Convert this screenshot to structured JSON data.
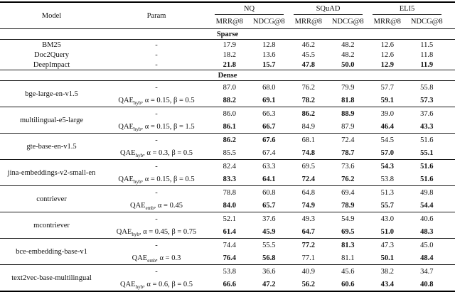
{
  "table": {
    "header": {
      "model": "Model",
      "param": "Param",
      "groups": [
        "NQ",
        "SQuAD",
        "ELI5"
      ],
      "metrics": [
        "MRR@8",
        "NDCG@8",
        "MRR@8",
        "NDCG@8",
        "MRR@8",
        "NDCG@8"
      ]
    },
    "sections": [
      {
        "label": "Sparse",
        "rows": [
          {
            "model": "BM25",
            "param": "-",
            "values": [
              "17.9",
              "12.8",
              "46.2",
              "48.2",
              "12.6",
              "11.5"
            ]
          },
          {
            "model": "Doc2Query",
            "param": "-",
            "values": [
              "18.2",
              "13.6",
              "45.5",
              "48.2",
              "12.6",
              "11.8"
            ]
          },
          {
            "model": "DeepImpact",
            "param": "-",
            "values": [
              "21.8",
              "15.7",
              "47.8",
              "50.0",
              "12.9",
              "11.9"
            ]
          }
        ]
      },
      {
        "label": "Dense",
        "groups": [
          {
            "model": "bge-large-en-v1.5",
            "rows": [
              {
                "param": "-",
                "values": [
                  "87.0",
                  "68.0",
                  "76.2",
                  "79.9",
                  "57.7",
                  "55.8"
                ]
              },
              {
                "param_base": "QAE",
                "param_sub": "hyb",
                "param_rest": ", α = 0.15,  β = 0.5",
                "values": [
                  "88.2",
                  "69.1",
                  "78.2",
                  "81.8",
                  "59.1",
                  "57.3"
                ]
              }
            ]
          },
          {
            "model": "multilingual-e5-large",
            "rows": [
              {
                "param": "-",
                "values": [
                  "86.0",
                  "66.3",
                  "86.2",
                  "88.9",
                  "39.0",
                  "37.6"
                ]
              },
              {
                "param_base": "QAE",
                "param_sub": "hyb",
                "param_rest": ", α = 0.15,  β = 1.5",
                "values": [
                  "86.1",
                  "66.7",
                  "84.9",
                  "87.9",
                  "46.4",
                  "43.3"
                ]
              }
            ]
          },
          {
            "model": "gte-base-en-v1.5",
            "rows": [
              {
                "param": "-",
                "values": [
                  "86.2",
                  "67.6",
                  "68.1",
                  "72.4",
                  "54.5",
                  "51.6"
                ]
              },
              {
                "param_base": "QAE",
                "param_sub": "hyb",
                "param_rest": ", α = 0.3,  β = 0.5",
                "values": [
                  "85.5",
                  "67.4",
                  "74.8",
                  "78.7",
                  "57.0",
                  "55.1"
                ]
              }
            ]
          },
          {
            "model": "jina-embeddings-v2-small-en",
            "rows": [
              {
                "param": "-",
                "values": [
                  "82.4",
                  "63.3",
                  "69.5",
                  "73.6",
                  "54.3",
                  "51.6"
                ]
              },
              {
                "param_base": "QAE",
                "param_sub": "hyb",
                "param_rest": ", α = 0.15,  β = 0.5",
                "values": [
                  "83.3",
                  "64.1",
                  "72.4",
                  "76.2",
                  "53.8",
                  "51.6"
                ]
              }
            ]
          },
          {
            "model": "contriever",
            "rows": [
              {
                "param": "-",
                "values": [
                  "78.8",
                  "60.8",
                  "64.8",
                  "69.4",
                  "51.3",
                  "49.8"
                ]
              },
              {
                "param_base": "QAE",
                "param_sub": "emb",
                "param_rest": ", α = 0.45",
                "values": [
                  "84.0",
                  "65.7",
                  "74.9",
                  "78.9",
                  "55.7",
                  "54.4"
                ]
              }
            ]
          },
          {
            "model": "mcontriever",
            "rows": [
              {
                "param": "-",
                "values": [
                  "52.1",
                  "37.6",
                  "49.3",
                  "54.9",
                  "43.0",
                  "40.6"
                ]
              },
              {
                "param_base": "QAE",
                "param_sub": "hyb",
                "param_rest": ", α = 0.45,  β = 0.75",
                "values": [
                  "61.4",
                  "45.9",
                  "64.7",
                  "69.5",
                  "51.0",
                  "48.3"
                ]
              }
            ]
          },
          {
            "model": "bce-embedding-base-v1",
            "rows": [
              {
                "param": "-",
                "values": [
                  "74.4",
                  "55.5",
                  "77.2",
                  "81.3",
                  "47.3",
                  "45.0"
                ]
              },
              {
                "param_base": "QAE",
                "param_sub": "emb",
                "param_rest": ", α = 0.3",
                "values": [
                  "76.4",
                  "56.8",
                  "77.1",
                  "81.1",
                  "50.1",
                  "48.4"
                ]
              }
            ]
          },
          {
            "model": "text2vec-base-multilingual",
            "rows": [
              {
                "param": "-",
                "values": [
                  "53.8",
                  "36.6",
                  "40.9",
                  "45.6",
                  "38.2",
                  "34.7"
                ]
              },
              {
                "param_base": "QAE",
                "param_sub": "hyb",
                "param_rest": ", α = 0.6,  β = 0.5",
                "values": [
                  "66.6",
                  "47.2",
                  "56.2",
                  "60.6",
                  "43.4",
                  "40.8"
                ]
              }
            ]
          }
        ]
      }
    ]
  }
}
